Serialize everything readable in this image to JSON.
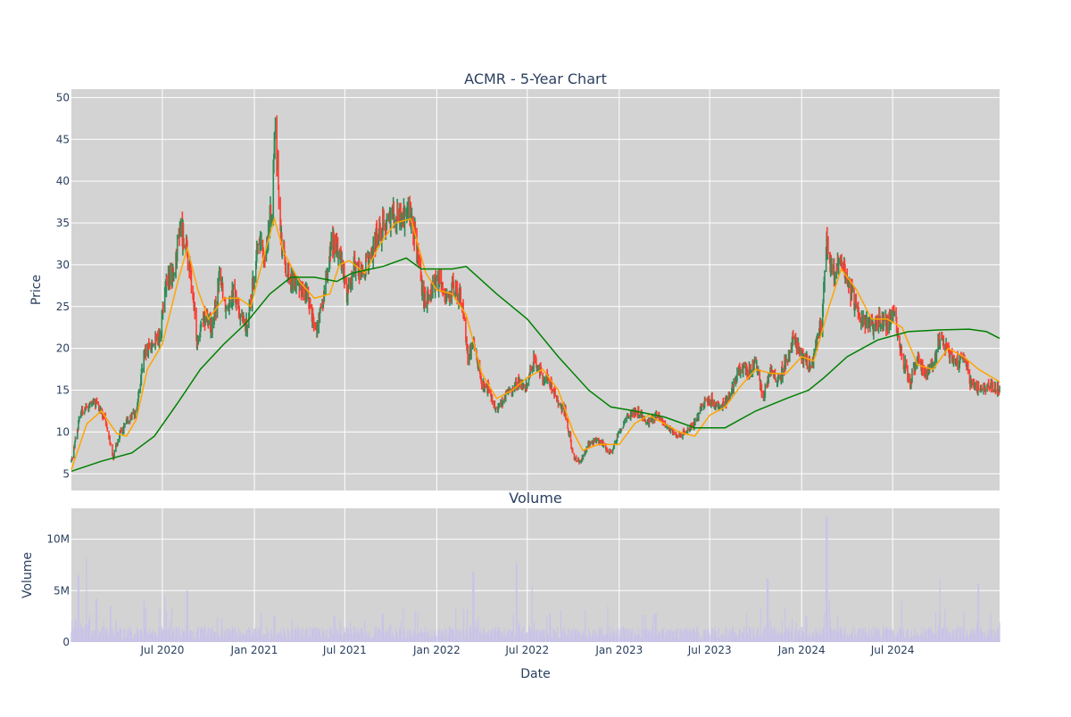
{
  "chart_data": [
    {
      "type": "candlestick",
      "title": "ACMR - 5-Year Chart",
      "ylabel": "Price",
      "xrange": [
        "2020-01-01",
        "2025-01-31"
      ],
      "ylim": [
        3,
        51
      ],
      "yticks": [
        5,
        10,
        15,
        20,
        25,
        30,
        35,
        40,
        45,
        50
      ],
      "xticks": [
        {
          "date": "2020-07-01",
          "label": "Jul 2020"
        },
        {
          "date": "2021-01-01",
          "label": "Jan 2021"
        },
        {
          "date": "2021-07-01",
          "label": "Jul 2021"
        },
        {
          "date": "2022-01-01",
          "label": "Jan 2022"
        },
        {
          "date": "2022-07-01",
          "label": "Jul 2022"
        },
        {
          "date": "2023-01-01",
          "label": "Jan 2023"
        },
        {
          "date": "2023-07-01",
          "label": "Jul 2023"
        },
        {
          "date": "2024-01-01",
          "label": "Jan 2024"
        },
        {
          "date": "2024-07-01",
          "label": "Jul 2024"
        }
      ],
      "grid": true,
      "price_path": [
        [
          "2020-01-01",
          6.5
        ],
        [
          "2020-01-20",
          12.5
        ],
        [
          "2020-02-20",
          13.5
        ],
        [
          "2020-03-10",
          11.0
        ],
        [
          "2020-03-25",
          7.0
        ],
        [
          "2020-04-05",
          9.5
        ],
        [
          "2020-04-25",
          11.5
        ],
        [
          "2020-05-10",
          12.5
        ],
        [
          "2020-05-25",
          19.0
        ],
        [
          "2020-06-10",
          20.5
        ],
        [
          "2020-06-25",
          21.0
        ],
        [
          "2020-07-10",
          28.0
        ],
        [
          "2020-07-25",
          29.0
        ],
        [
          "2020-08-05",
          34.5
        ],
        [
          "2020-08-15",
          33.0
        ],
        [
          "2020-08-28",
          28.0
        ],
        [
          "2020-09-08",
          21.0
        ],
        [
          "2020-09-20",
          24.0
        ],
        [
          "2020-10-10",
          22.5
        ],
        [
          "2020-10-25",
          29.0
        ],
        [
          "2020-11-05",
          25.0
        ],
        [
          "2020-11-20",
          27.0
        ],
        [
          "2020-12-01",
          24.5
        ],
        [
          "2020-12-15",
          22.5
        ],
        [
          "2020-12-28",
          27.0
        ],
        [
          "2021-01-10",
          33.0
        ],
        [
          "2021-01-20",
          31.0
        ],
        [
          "2021-01-28",
          33.5
        ],
        [
          "2021-02-05",
          37.0
        ],
        [
          "2021-02-12",
          46.0
        ],
        [
          "2021-02-18",
          40.0
        ],
        [
          "2021-02-24",
          33.0
        ],
        [
          "2021-03-05",
          30.0
        ],
        [
          "2021-03-15",
          28.0
        ],
        [
          "2021-04-01",
          27.5
        ],
        [
          "2021-04-20",
          26.0
        ],
        [
          "2021-05-05",
          22.0
        ],
        [
          "2021-05-20",
          26.0
        ],
        [
          "2021-06-05",
          33.0
        ],
        [
          "2021-06-20",
          31.5
        ],
        [
          "2021-07-05",
          26.5
        ],
        [
          "2021-07-20",
          30.0
        ],
        [
          "2021-08-05",
          29.0
        ],
        [
          "2021-08-20",
          30.5
        ],
        [
          "2021-09-05",
          34.0
        ],
        [
          "2021-09-20",
          35.0
        ],
        [
          "2021-10-05",
          36.5
        ],
        [
          "2021-10-20",
          35.5
        ],
        [
          "2021-11-05",
          36.5
        ],
        [
          "2021-11-20",
          33.0
        ],
        [
          "2021-12-05",
          25.5
        ],
        [
          "2021-12-20",
          27.0
        ],
        [
          "2022-01-05",
          28.0
        ],
        [
          "2022-01-20",
          26.5
        ],
        [
          "2022-02-05",
          27.0
        ],
        [
          "2022-02-20",
          26.0
        ],
        [
          "2022-03-05",
          18.5
        ],
        [
          "2022-03-15",
          21.0
        ],
        [
          "2022-03-30",
          16.0
        ],
        [
          "2022-04-15",
          15.0
        ],
        [
          "2022-04-30",
          12.5
        ],
        [
          "2022-05-15",
          14.0
        ],
        [
          "2022-05-30",
          15.0
        ],
        [
          "2022-06-15",
          16.0
        ],
        [
          "2022-07-01",
          15.5
        ],
        [
          "2022-07-15",
          19.0
        ],
        [
          "2022-08-01",
          16.5
        ],
        [
          "2022-08-15",
          16.0
        ],
        [
          "2022-09-01",
          13.5
        ],
        [
          "2022-09-15",
          12.5
        ],
        [
          "2022-10-01",
          7.0
        ],
        [
          "2022-10-15",
          6.5
        ],
        [
          "2022-11-01",
          8.5
        ],
        [
          "2022-11-15",
          9.0
        ],
        [
          "2022-12-01",
          8.5
        ],
        [
          "2022-12-15",
          7.5
        ],
        [
          "2023-01-01",
          10.0
        ],
        [
          "2023-01-15",
          11.5
        ],
        [
          "2023-02-01",
          12.5
        ],
        [
          "2023-02-15",
          12.0
        ],
        [
          "2023-03-01",
          11.0
        ],
        [
          "2023-03-15",
          12.0
        ],
        [
          "2023-04-01",
          11.0
        ],
        [
          "2023-04-15",
          10.0
        ],
        [
          "2023-05-01",
          9.5
        ],
        [
          "2023-05-15",
          10.0
        ],
        [
          "2023-06-01",
          11.0
        ],
        [
          "2023-06-15",
          13.0
        ],
        [
          "2023-07-01",
          14.0
        ],
        [
          "2023-07-15",
          13.0
        ],
        [
          "2023-08-01",
          13.5
        ],
        [
          "2023-08-15",
          15.0
        ],
        [
          "2023-09-01",
          18.0
        ],
        [
          "2023-09-15",
          17.0
        ],
        [
          "2023-10-01",
          18.5
        ],
        [
          "2023-10-15",
          14.0
        ],
        [
          "2023-11-01",
          17.5
        ],
        [
          "2023-11-15",
          16.0
        ],
        [
          "2023-12-01",
          18.5
        ],
        [
          "2023-12-15",
          21.0
        ],
        [
          "2024-01-01",
          19.0
        ],
        [
          "2024-01-20",
          18.0
        ],
        [
          "2024-02-10",
          23.0
        ],
        [
          "2024-02-20",
          32.0
        ],
        [
          "2024-03-05",
          29.0
        ],
        [
          "2024-03-20",
          31.0
        ],
        [
          "2024-04-05",
          27.0
        ],
        [
          "2024-04-20",
          25.0
        ],
        [
          "2024-05-05",
          23.0
        ],
        [
          "2024-05-20",
          22.5
        ],
        [
          "2024-06-05",
          23.5
        ],
        [
          "2024-06-20",
          23.0
        ],
        [
          "2024-07-05",
          24.0
        ],
        [
          "2024-07-20",
          19.0
        ],
        [
          "2024-08-05",
          16.0
        ],
        [
          "2024-08-20",
          19.0
        ],
        [
          "2024-09-05",
          17.0
        ],
        [
          "2024-09-20",
          18.0
        ],
        [
          "2024-10-05",
          21.5
        ],
        [
          "2024-10-20",
          19.5
        ],
        [
          "2024-11-05",
          18.0
        ],
        [
          "2024-11-20",
          19.5
        ],
        [
          "2024-12-05",
          15.5
        ],
        [
          "2024-12-20",
          15.0
        ],
        [
          "2025-01-15",
          15.5
        ],
        [
          "2025-01-31",
          15.0
        ]
      ],
      "moving_averages": [
        {
          "color": "#ffa500",
          "points": [
            [
              "2020-01-01",
              5.5
            ],
            [
              "2020-02-01",
              11.0
            ],
            [
              "2020-03-01",
              12.5
            ],
            [
              "2020-04-01",
              9.8
            ],
            [
              "2020-04-20",
              9.5
            ],
            [
              "2020-05-10",
              11.5
            ],
            [
              "2020-06-01",
              17.5
            ],
            [
              "2020-07-01",
              20.5
            ],
            [
              "2020-08-01",
              28.0
            ],
            [
              "2020-08-20",
              32.0
            ],
            [
              "2020-09-10",
              27.0
            ],
            [
              "2020-10-01",
              23.5
            ],
            [
              "2020-11-01",
              26.0
            ],
            [
              "2020-12-01",
              26.0
            ],
            [
              "2020-12-25",
              25.0
            ],
            [
              "2021-01-20",
              31.0
            ],
            [
              "2021-02-10",
              35.5
            ],
            [
              "2021-03-01",
              31.5
            ],
            [
              "2021-04-01",
              28.0
            ],
            [
              "2021-05-01",
              26.0
            ],
            [
              "2021-06-01",
              26.5
            ],
            [
              "2021-06-20",
              30.0
            ],
            [
              "2021-07-10",
              30.5
            ],
            [
              "2021-08-10",
              29.0
            ],
            [
              "2021-09-10",
              32.5
            ],
            [
              "2021-10-10",
              35.0
            ],
            [
              "2021-11-10",
              35.5
            ],
            [
              "2021-12-10",
              29.0
            ],
            [
              "2022-01-01",
              27.0
            ],
            [
              "2022-02-01",
              26.5
            ],
            [
              "2022-03-01",
              24.0
            ],
            [
              "2022-04-01",
              17.0
            ],
            [
              "2022-05-01",
              14.0
            ],
            [
              "2022-06-01",
              15.0
            ],
            [
              "2022-07-01",
              16.5
            ],
            [
              "2022-08-01",
              17.5
            ],
            [
              "2022-09-01",
              15.0
            ],
            [
              "2022-10-01",
              10.0
            ],
            [
              "2022-10-20",
              7.8
            ],
            [
              "2022-11-20",
              8.5
            ],
            [
              "2023-01-01",
              8.5
            ],
            [
              "2023-02-01",
              11.0
            ],
            [
              "2023-03-01",
              12.0
            ],
            [
              "2023-04-01",
              11.0
            ],
            [
              "2023-05-01",
              10.0
            ],
            [
              "2023-06-01",
              9.5
            ],
            [
              "2023-07-01",
              12.0
            ],
            [
              "2023-08-01",
              13.0
            ],
            [
              "2023-09-01",
              15.5
            ],
            [
              "2023-10-01",
              17.5
            ],
            [
              "2023-11-01",
              17.0
            ],
            [
              "2023-12-01",
              17.0
            ],
            [
              "2024-01-01",
              19.0
            ],
            [
              "2024-01-25",
              18.5
            ],
            [
              "2024-02-25",
              25.0
            ],
            [
              "2024-03-20",
              29.5
            ],
            [
              "2024-04-20",
              27.0
            ],
            [
              "2024-05-20",
              23.5
            ],
            [
              "2024-06-20",
              23.5
            ],
            [
              "2024-07-20",
              22.5
            ],
            [
              "2024-08-20",
              18.0
            ],
            [
              "2024-09-20",
              17.5
            ],
            [
              "2024-10-20",
              20.0
            ],
            [
              "2024-11-20",
              19.0
            ],
            [
              "2024-12-20",
              17.5
            ],
            [
              "2025-01-31",
              16.0
            ]
          ]
        },
        {
          "color": "#008000",
          "points": [
            [
              "2020-01-01",
              5.3
            ],
            [
              "2020-03-01",
              6.5
            ],
            [
              "2020-05-01",
              7.5
            ],
            [
              "2020-06-15",
              9.5
            ],
            [
              "2020-08-01",
              13.5
            ],
            [
              "2020-09-15",
              17.5
            ],
            [
              "2020-11-01",
              20.5
            ],
            [
              "2020-12-15",
              23.0
            ],
            [
              "2021-02-01",
              26.5
            ],
            [
              "2021-03-15",
              28.5
            ],
            [
              "2021-05-01",
              28.5
            ],
            [
              "2021-06-15",
              28.0
            ],
            [
              "2021-07-15",
              29.0
            ],
            [
              "2021-09-15",
              29.8
            ],
            [
              "2021-11-01",
              30.8
            ],
            [
              "2021-12-01",
              29.5
            ],
            [
              "2022-02-01",
              29.5
            ],
            [
              "2022-03-01",
              29.8
            ],
            [
              "2022-05-01",
              26.5
            ],
            [
              "2022-07-01",
              23.5
            ],
            [
              "2022-09-01",
              19.0
            ],
            [
              "2022-11-01",
              15.0
            ],
            [
              "2022-12-15",
              13.0
            ],
            [
              "2023-02-01",
              12.5
            ],
            [
              "2023-04-01",
              11.8
            ],
            [
              "2023-06-01",
              10.5
            ],
            [
              "2023-08-01",
              10.5
            ],
            [
              "2023-10-01",
              12.5
            ],
            [
              "2023-12-01",
              14.0
            ],
            [
              "2024-01-15",
              15.0
            ],
            [
              "2024-02-15",
              16.5
            ],
            [
              "2024-04-01",
              19.0
            ],
            [
              "2024-06-01",
              21.0
            ],
            [
              "2024-08-01",
              22.0
            ],
            [
              "2024-10-01",
              22.2
            ],
            [
              "2024-12-01",
              22.3
            ],
            [
              "2025-01-05",
              22.0
            ],
            [
              "2025-01-31",
              21.2
            ]
          ]
        }
      ],
      "up_color": "#2e8b57",
      "down_color": "#ff3b30"
    },
    {
      "type": "bar",
      "title": "Volume",
      "ylabel": "Volume",
      "xlabel": "Date",
      "ylim": [
        0,
        13000000
      ],
      "yticks": [
        {
          "value": 0,
          "label": "0"
        },
        {
          "value": 5000000,
          "label": "5M"
        },
        {
          "value": 10000000,
          "label": "10M"
        }
      ],
      "bar_color": "#c9c3e8",
      "volume_spikes": [
        [
          "2020-01-15",
          6500000
        ],
        [
          "2020-02-01",
          8200000
        ],
        [
          "2020-02-20",
          4200000
        ],
        [
          "2020-03-20",
          3500000
        ],
        [
          "2020-05-25",
          4000000
        ],
        [
          "2020-07-05",
          4500000
        ],
        [
          "2020-08-20",
          5000000
        ],
        [
          "2021-01-15",
          2800000
        ],
        [
          "2021-02-10",
          2600000
        ],
        [
          "2021-06-10",
          2500000
        ],
        [
          "2021-09-15",
          2700000
        ],
        [
          "2021-11-20",
          3000000
        ],
        [
          "2022-03-15",
          6800000
        ],
        [
          "2022-06-10",
          7700000
        ],
        [
          "2022-07-10",
          5500000
        ],
        [
          "2022-08-15",
          2800000
        ],
        [
          "2022-12-10",
          3500000
        ],
        [
          "2023-03-15",
          2800000
        ],
        [
          "2023-10-25",
          6200000
        ],
        [
          "2024-01-10",
          2500000
        ],
        [
          "2024-02-20",
          12200000
        ],
        [
          "2024-07-20",
          4000000
        ],
        [
          "2024-10-05",
          6200000
        ],
        [
          "2024-12-20",
          5700000
        ]
      ],
      "typical_volume": 900000
    }
  ]
}
